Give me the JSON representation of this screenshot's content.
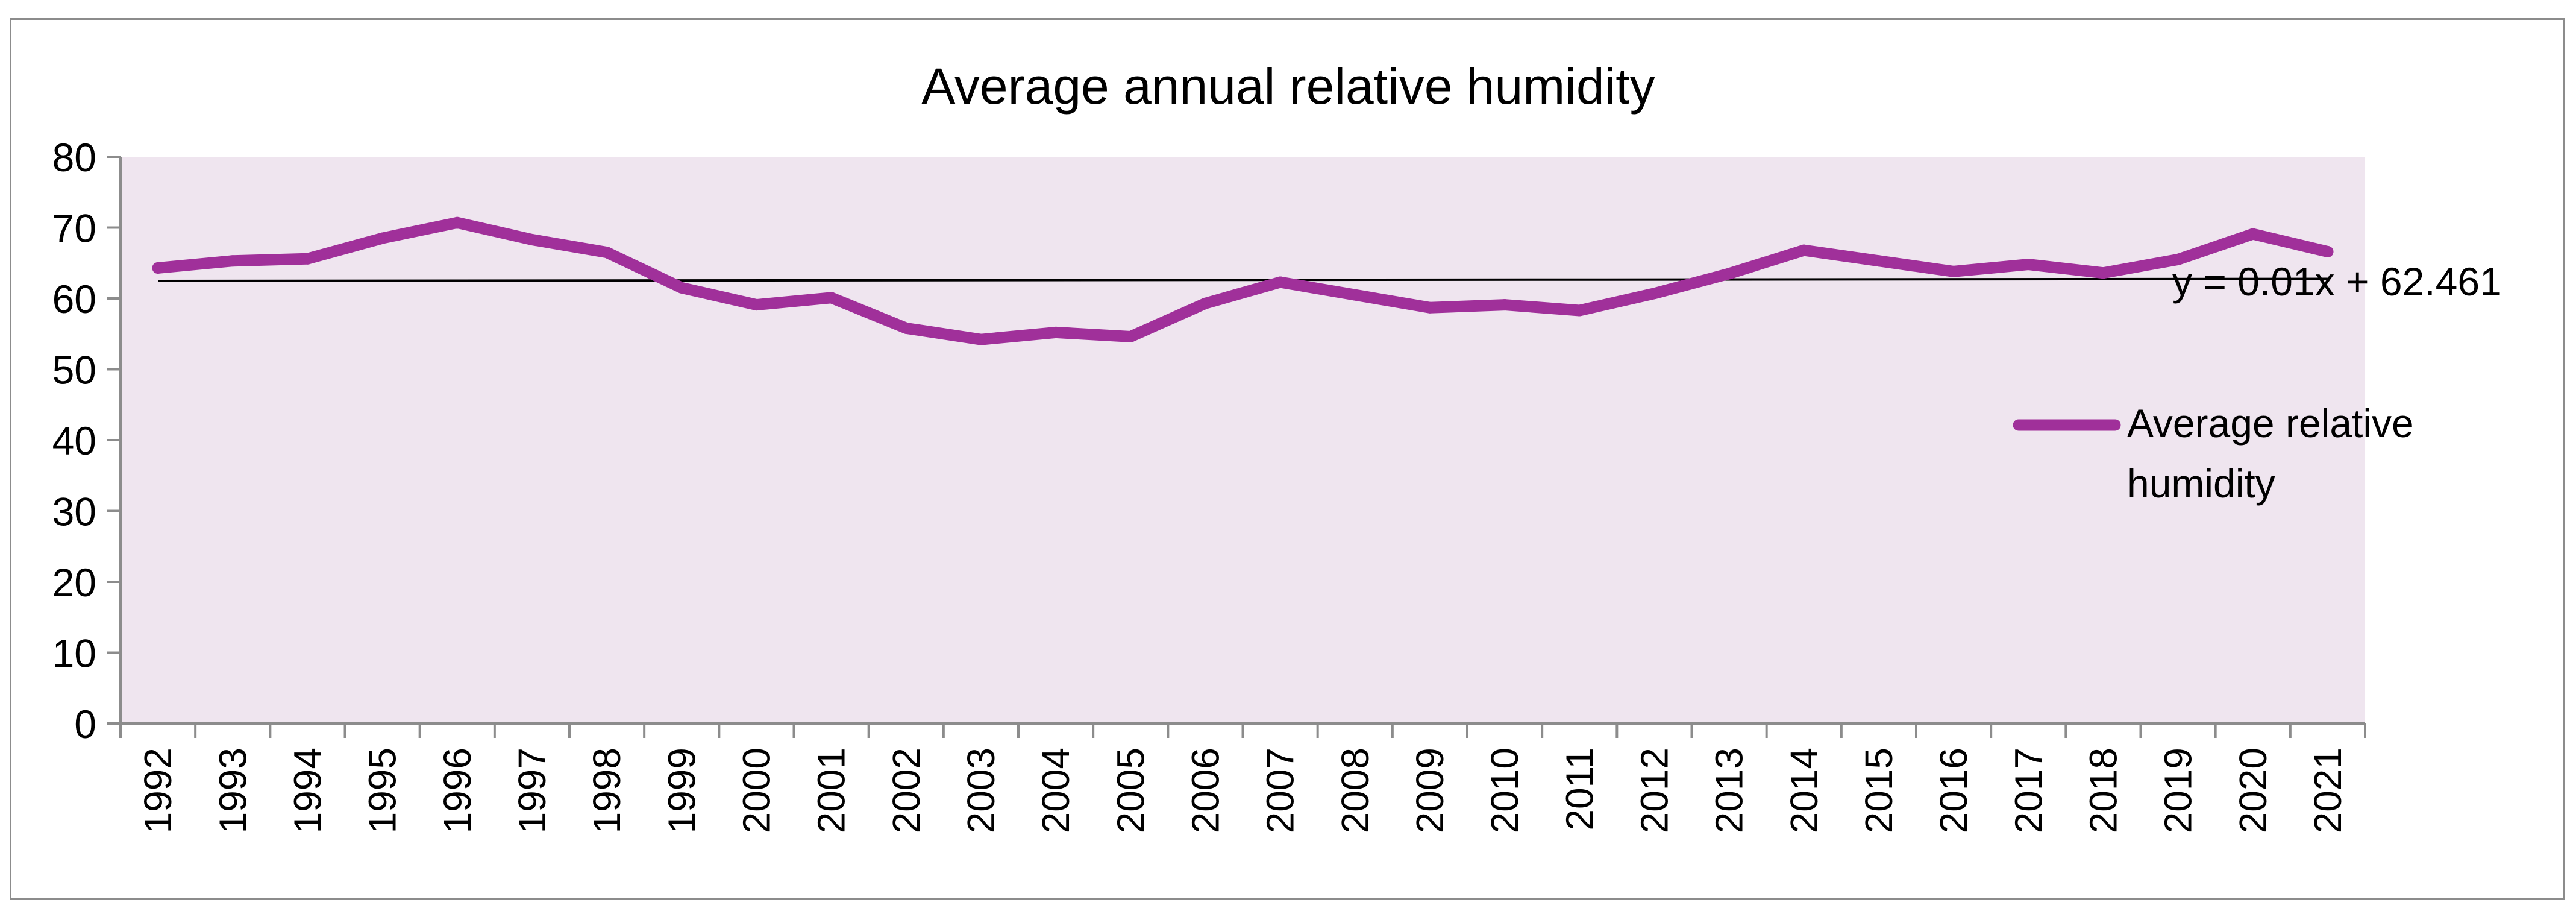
{
  "chart_data": {
    "type": "line",
    "title": "Average annual relative humidity",
    "xlabel": "",
    "ylabel": "",
    "ylim": [
      0,
      80
    ],
    "yticks": [
      0,
      10,
      20,
      30,
      40,
      50,
      60,
      70,
      80
    ],
    "categories": [
      "1992",
      "1993",
      "1994",
      "1995",
      "1996",
      "1997",
      "1998",
      "1999",
      "2000",
      "2001",
      "2002",
      "2003",
      "2004",
      "2005",
      "2006",
      "2007",
      "2008",
      "2009",
      "2010",
      "2011",
      "2012",
      "2013",
      "2014",
      "2015",
      "2016",
      "2017",
      "2018",
      "2019",
      "2020",
      "2021"
    ],
    "series": [
      {
        "name": "Average relative humidity",
        "color": "#a0309a",
        "values": [
          64.3,
          65.3,
          65.6,
          68.5,
          70.7,
          68.3,
          66.5,
          61.5,
          59.1,
          60.1,
          55.8,
          54.2,
          55.2,
          54.6,
          59.3,
          62.3,
          60.5,
          58.7,
          59.1,
          58.3,
          60.7,
          63.5,
          66.8,
          65.3,
          63.8,
          64.8,
          63.6,
          65.5,
          69.1,
          66.6
        ]
      }
    ],
    "trendline": {
      "type": "linear",
      "equation": "y = 0.01x + 62.461",
      "slope": 0.01,
      "intercept": 62.461,
      "color": "#000000"
    },
    "legend": {
      "position": "right",
      "label_line1": "Average relative",
      "label_line2": "humidity"
    },
    "grid": false,
    "plot_background": "#efe5ef"
  }
}
